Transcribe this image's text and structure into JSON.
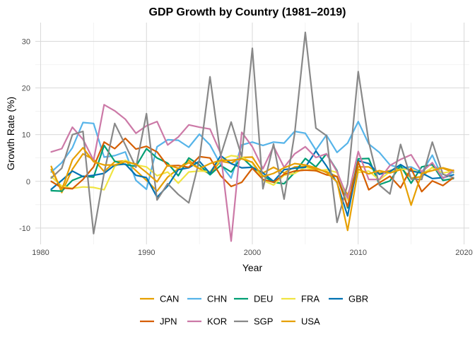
{
  "chart_data": {
    "type": "line",
    "title": "GDP Growth by Country (1981–2019)",
    "xlabel": "Year",
    "ylabel": "Growth Rate (%)",
    "xlim": [
      1979.5,
      2020.5
    ],
    "ylim": [
      -13.5,
      34
    ],
    "x_ticks": [
      1980,
      1990,
      2000,
      2010,
      2020
    ],
    "y_ticks": [
      -10,
      0,
      10,
      20,
      30
    ],
    "grid": true,
    "legend_position": "bottom",
    "x": [
      1981,
      1982,
      1983,
      1984,
      1985,
      1986,
      1987,
      1988,
      1989,
      1990,
      1991,
      1992,
      1993,
      1994,
      1995,
      1996,
      1997,
      1998,
      1999,
      2000,
      2001,
      2002,
      2003,
      2004,
      2005,
      2006,
      2007,
      2008,
      2009,
      2010,
      2011,
      2012,
      2013,
      2014,
      2015,
      2016,
      2017,
      2018,
      2019
    ],
    "series": [
      {
        "name": "CAN",
        "color": "#E69F00",
        "values": [
          3.2,
          -2.4,
          2.6,
          5.9,
          4.7,
          2.1,
          4.2,
          4.4,
          2.3,
          0.2,
          -2.1,
          0.9,
          2.7,
          4.5,
          2.7,
          1.6,
          4.3,
          3.9,
          5.1,
          5.2,
          1.8,
          3.0,
          1.8,
          3.1,
          3.2,
          2.6,
          2.1,
          1.0,
          -2.9,
          3.1,
          3.1,
          1.8,
          2.3,
          2.9,
          0.7,
          1.0,
          3.0,
          2.8,
          1.9
        ]
      },
      {
        "name": "CHN",
        "color": "#56B4E9",
        "values": [
          2.0,
          4.0,
          7.2,
          12.6,
          12.4,
          5.2,
          5.5,
          6.3,
          0.2,
          -1.7,
          7.4,
          8.9,
          8.8,
          7.3,
          10.1,
          7.8,
          3.6,
          0.7,
          7.8,
          8.4,
          7.7,
          8.4,
          8.2,
          10.7,
          10.3,
          6.7,
          9.9,
          6.2,
          8.2,
          12.8,
          8.0,
          6.2,
          3.5,
          2.8,
          3.1,
          1.9,
          5.6,
          0.6,
          2.1
        ]
      },
      {
        "name": "DEU",
        "color": "#009E73",
        "values": [
          -2.0,
          -2.1,
          0.2,
          1.1,
          0.9,
          7.7,
          4.3,
          3.6,
          3.2,
          7.0,
          5.0,
          3.9,
          1.2,
          5.0,
          3.5,
          1.4,
          3.4,
          2.0,
          5.2,
          3.0,
          1.2,
          -0.2,
          -0.5,
          1.9,
          4.9,
          3.1,
          5.9,
          2.3,
          -5.7,
          4.8,
          4.9,
          -0.7,
          0.1,
          3.4,
          -0.4,
          3.1,
          3.6,
          0.2,
          0.6
        ]
      },
      {
        "name": "FRA",
        "color": "#F0E442",
        "values": [
          1.0,
          -1.0,
          -1.5,
          -1.2,
          -1.3,
          -1.8,
          3.2,
          4.5,
          3.5,
          3.1,
          1.2,
          2.0,
          -0.4,
          2.0,
          2.2,
          2.1,
          4.6,
          5.5,
          5.2,
          4.0,
          0.2,
          -0.8,
          1.3,
          1.7,
          3.0,
          2.2,
          2.5,
          1.9,
          -4.0,
          1.9,
          2.2,
          0.3,
          2.1,
          2.6,
          2.6,
          1.6,
          2.9,
          1.8,
          2.2
        ]
      },
      {
        "name": "GBR",
        "color": "#0072B2",
        "values": [
          -1.7,
          0.2,
          2.2,
          1.0,
          1.3,
          1.7,
          3.5,
          3.7,
          1.3,
          0.8,
          -3.4,
          -1.0,
          2.5,
          2.9,
          4.3,
          1.7,
          5.5,
          3.8,
          2.9,
          3.0,
          1.8,
          0.0,
          2.5,
          2.8,
          3.0,
          6.5,
          3.3,
          -0.3,
          -7.4,
          4.4,
          3.8,
          1.5,
          2.1,
          3.6,
          2.2,
          1.8,
          0.6,
          0.8,
          1.4
        ]
      },
      {
        "name": "JPN",
        "color": "#D55E00",
        "values": [
          0.0,
          -1.4,
          -1.6,
          0.4,
          3.1,
          8.4,
          7.0,
          9.2,
          6.9,
          7.5,
          6.3,
          3.3,
          3.4,
          3.0,
          5.3,
          5.0,
          1.2,
          -1.1,
          -0.2,
          2.8,
          0.4,
          -0.2,
          1.5,
          2.2,
          2.4,
          2.3,
          1.4,
          1.0,
          -5.4,
          4.2,
          -1.8,
          -0.3,
          1.1,
          -1.4,
          2.8,
          -2.2,
          0.1,
          -0.9,
          0.8
        ]
      },
      {
        "name": "KOR",
        "color": "#CC79A7",
        "values": [
          6.3,
          7.0,
          11.6,
          9.0,
          4.5,
          16.4,
          15.1,
          13.3,
          10.3,
          11.9,
          12.8,
          7.8,
          9.5,
          12.1,
          11.6,
          11.2,
          6.0,
          -12.8,
          10.5,
          7.4,
          2.7,
          7.5,
          3.0,
          5.9,
          7.4,
          5.1,
          5.9,
          2.1,
          -3.6,
          6.4,
          0.4,
          0.4,
          3.4,
          4.7,
          5.7,
          2.0,
          4.0,
          0.6,
          2.4
        ]
      },
      {
        "name": "SGP",
        "color": "#888888",
        "values": [
          0.7,
          2.8,
          10.0,
          10.7,
          -11.2,
          1.8,
          12.4,
          7.8,
          3.0,
          14.5,
          -4.0,
          -0.5,
          -2.8,
          -4.6,
          4.6,
          22.4,
          5.5,
          12.7,
          5.3,
          28.5,
          -1.6,
          8.0,
          -3.8,
          10.3,
          31.9,
          11.4,
          9.8,
          -8.8,
          -0.6,
          23.5,
          8.4,
          -0.8,
          -2.7,
          7.9,
          0.5,
          0.4,
          8.4,
          1.5,
          0.8
        ]
      },
      {
        "name": "USA",
        "color": "#E69F00",
        "values": [
          2.5,
          -1.8,
          4.6,
          7.2,
          4.2,
          3.5,
          3.5,
          4.2,
          3.7,
          1.9,
          -0.1,
          3.5,
          2.8,
          4.0,
          2.7,
          3.8,
          4.5,
          4.5,
          4.8,
          4.1,
          1.0,
          1.7,
          2.9,
          3.8,
          3.5,
          2.9,
          1.9,
          -0.1,
          -10.5,
          2.6,
          1.6,
          2.3,
          1.8,
          2.5,
          -5.1,
          1.7,
          2.3,
          2.9,
          2.3
        ]
      }
    ]
  }
}
